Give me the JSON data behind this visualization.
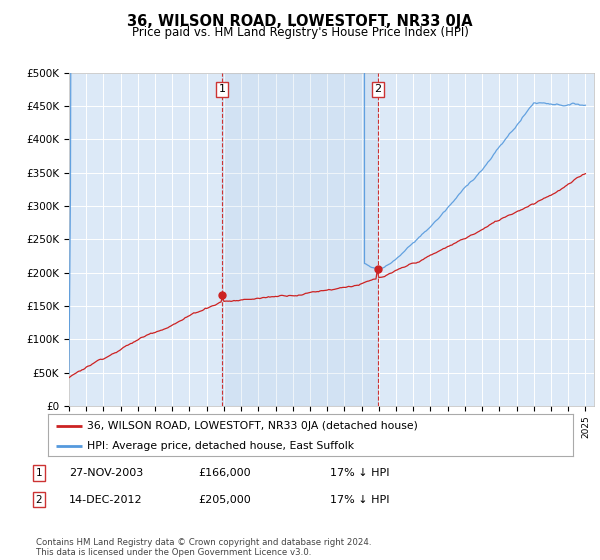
{
  "title": "36, WILSON ROAD, LOWESTOFT, NR33 0JA",
  "subtitle": "Price paid vs. HM Land Registry's House Price Index (HPI)",
  "background_color": "#ffffff",
  "plot_bg_color": "#dce9f7",
  "grid_color": "#ffffff",
  "hpi_line_color": "#5599dd",
  "price_line_color": "#cc2222",
  "sale1_x": 2003.9,
  "sale1_price": 166000,
  "sale2_x": 2012.95,
  "sale2_price": 205000,
  "vline_color": "#cc3333",
  "marker_color": "#cc2222",
  "ylim": [
    0,
    500000
  ],
  "xlim_start": 1995,
  "xlim_end": 2025.5,
  "legend_label_red": "36, WILSON ROAD, LOWESTOFT, NR33 0JA (detached house)",
  "legend_label_blue": "HPI: Average price, detached house, East Suffolk",
  "table_rows": [
    {
      "num": "1",
      "date": "27-NOV-2003",
      "price": "£166,000",
      "pct": "17% ↓ HPI"
    },
    {
      "num": "2",
      "date": "14-DEC-2012",
      "price": "£205,000",
      "pct": "17% ↓ HPI"
    }
  ],
  "footnote": "Contains HM Land Registry data © Crown copyright and database right 2024.\nThis data is licensed under the Open Government Licence v3.0."
}
